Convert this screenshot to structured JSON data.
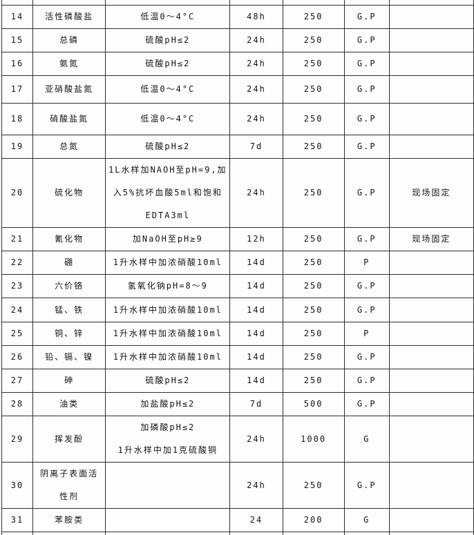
{
  "colors": {
    "background": "#fdfdfd",
    "grid_line": "#2e2e2e",
    "text": "#141414"
  },
  "table": {
    "rows": [
      {
        "no": "14",
        "parameter": "活性磷酸盐",
        "method": "低温0～4°C",
        "time": "48h",
        "volume": "250",
        "container": "G.P",
        "note": ""
      },
      {
        "no": "15",
        "parameter": "总磷",
        "method": "硫酸pH≤2",
        "time": "24h",
        "volume": "250",
        "container": "G.P",
        "note": ""
      },
      {
        "no": "16",
        "parameter": "氨氮",
        "method": "硫酸pH≤2",
        "time": "24h",
        "volume": "250",
        "container": "G.P",
        "note": ""
      },
      {
        "no": "17",
        "parameter": "亚硝酸盐氮",
        "method": "低温0～4°C",
        "time": "24h",
        "volume": "250",
        "container": "G.P",
        "note": ""
      },
      {
        "no": "18",
        "parameter": "硝酸盐氮",
        "method": "低温0～4°C",
        "time": "24h",
        "volume": "250",
        "container": "G.P",
        "note": ""
      },
      {
        "no": "19",
        "parameter": "总氮",
        "method": "硫酸pH≤2",
        "time": "7d",
        "volume": "250",
        "container": "G.P",
        "note": ""
      },
      {
        "no": "20",
        "parameter": "硫化物",
        "method": "1L水样加NAOH至pH=9,加\n入5%抗坏血酸5ml和饱和\nEDTA3ml",
        "time": "24h",
        "volume": "250",
        "container": "G.P",
        "note": "现场固定"
      },
      {
        "no": "21",
        "parameter": "氰化物",
        "method": "加NaOH至pH≥9",
        "time": "12h",
        "volume": "250",
        "container": "G.P",
        "note": "现场固定"
      },
      {
        "no": "22",
        "parameter": "硼",
        "method": "1升水样中加浓硝酸10ml",
        "time": "14d",
        "volume": "250",
        "container": "P",
        "note": ""
      },
      {
        "no": "23",
        "parameter": "六价铬",
        "method": "氢氧化钠pH=8～9",
        "time": "14d",
        "volume": "250",
        "container": "G.P",
        "note": ""
      },
      {
        "no": "24",
        "parameter": "锰、铁",
        "method": "1升水样中加浓硝酸10ml",
        "time": "14d",
        "volume": "250",
        "container": "G.P",
        "note": ""
      },
      {
        "no": "25",
        "parameter": "铜、锌",
        "method": "1升水样中加浓硝酸10ml",
        "time": "14d",
        "volume": "250",
        "container": "P",
        "note": ""
      },
      {
        "no": "26",
        "parameter": "铅、镉、镍",
        "method": "1升水样中加浓硝酸10ml",
        "time": "14d",
        "volume": "250",
        "container": "G.P",
        "note": ""
      },
      {
        "no": "27",
        "parameter": "砷",
        "method": "硫酸pH≤2",
        "time": "14d",
        "volume": "250",
        "container": "G.P",
        "note": ""
      },
      {
        "no": "28",
        "parameter": "油类",
        "method": "加盐酸pH≤2",
        "time": "7d",
        "volume": "500",
        "container": "G.P",
        "note": ""
      },
      {
        "no": "29",
        "parameter": "挥发酚",
        "method": "加磷酸pH≤2\n1升水样中加1克硫酸铜",
        "time": "24h",
        "volume": "1000",
        "container": "G",
        "note": ""
      },
      {
        "no": "30",
        "parameter": "阴离子表面活\n性剂",
        "method": "",
        "time": "24h",
        "volume": "250",
        "container": "G.P",
        "note": ""
      },
      {
        "no": "31",
        "parameter": "苯胺类",
        "method": "",
        "time": "24",
        "volume": "200",
        "container": "G",
        "note": ""
      }
    ]
  }
}
